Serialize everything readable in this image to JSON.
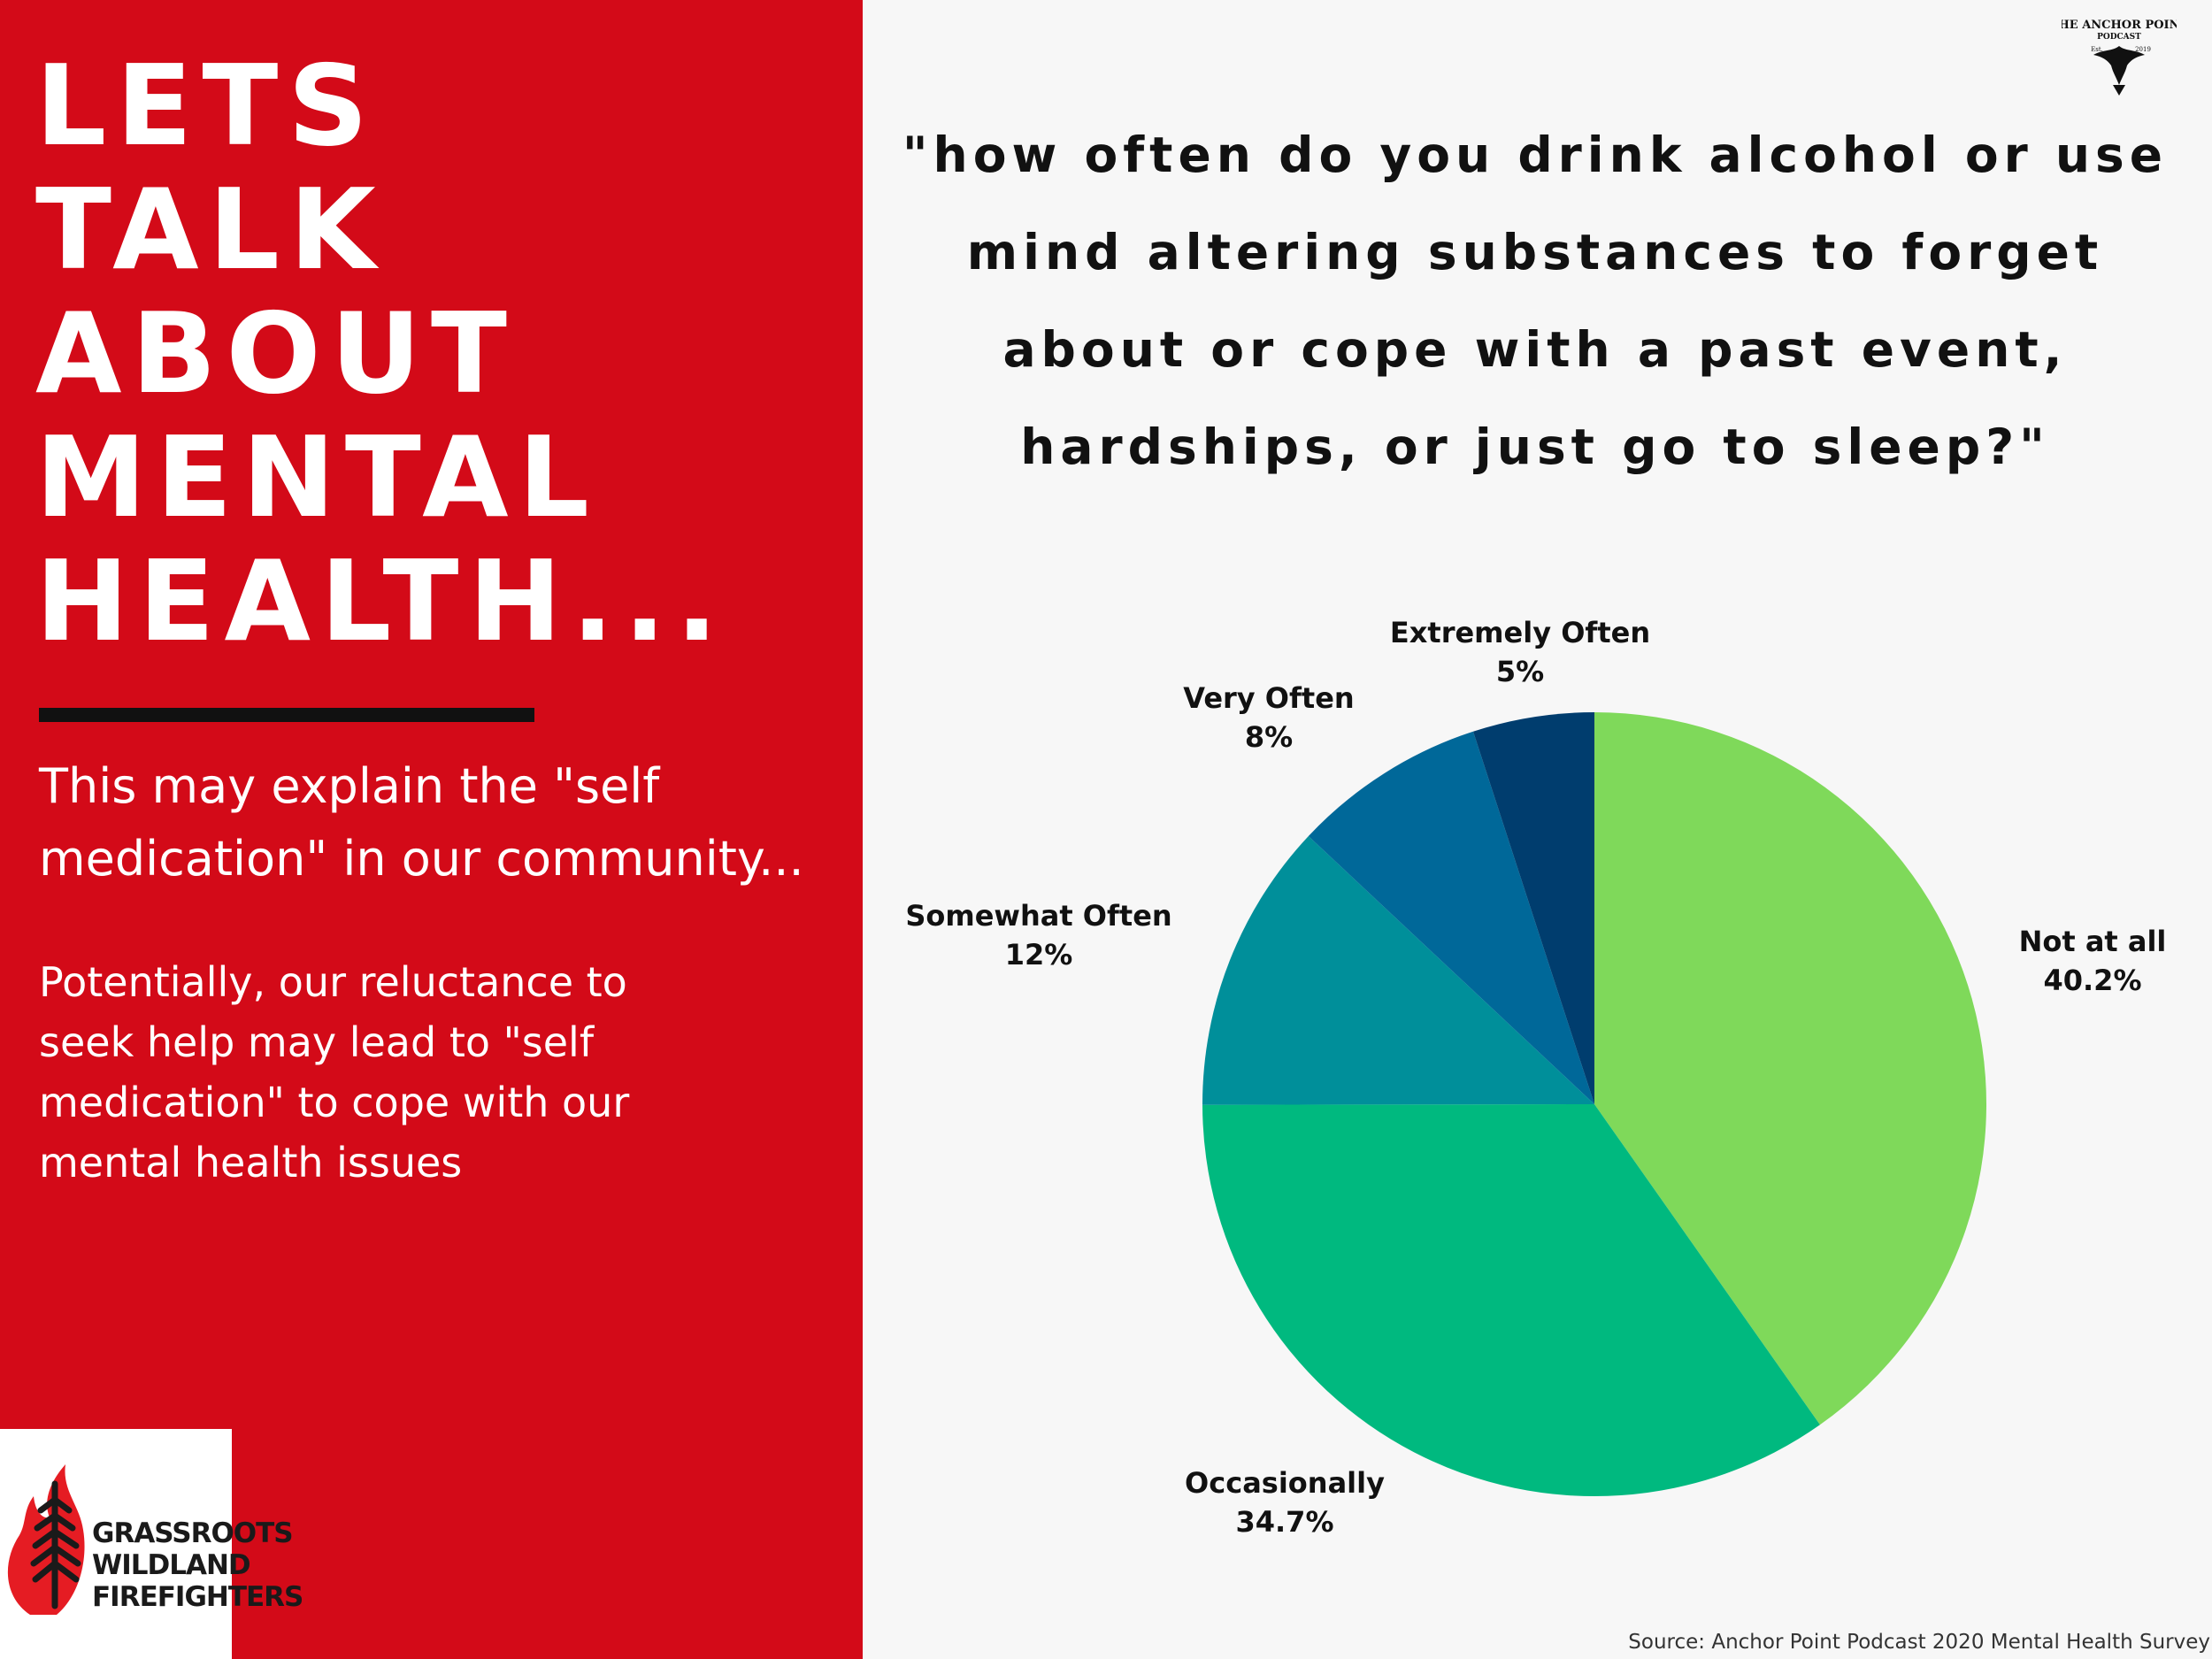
{
  "headline": [
    "LETS",
    "TALK",
    "ABOUT",
    "MENTAL",
    "HEALTH..."
  ],
  "subheading": "This may explain the \"self medication\" in our community...",
  "body_text": "Potentially, our reluctance to seek help may lead to \"self medication\" to cope with our mental health issues",
  "logo_left": {
    "lines": [
      "GRASSROOTS",
      "WILDLAND",
      "FIREFIGHTERS"
    ]
  },
  "logo_right": {
    "text_top": "THE ANCHOR POINT",
    "text_sub": "PODCAST",
    "est": "Est.",
    "year": "2019"
  },
  "colors": {
    "left_panel": "#d30a18",
    "background": "#f7f7f7"
  },
  "chart_data": {
    "type": "pie",
    "title": "\"how often do you drink alcohol or use mind altering substances to forget about or cope with a past event, hardships, or just go to sleep?\"",
    "start_angle_deg": 0,
    "direction": "clockwise",
    "slices": [
      {
        "label": "Not at all",
        "value": 40.2,
        "display": "40.2%",
        "color": "#7fd95a"
      },
      {
        "label": "Occasionally",
        "value": 34.7,
        "display": "34.7%",
        "color": "#00b97f"
      },
      {
        "label": "Somewhat Often",
        "value": 12,
        "display": "12%",
        "color": "#008f9a"
      },
      {
        "label": "Very Often",
        "value": 8,
        "display": "8%",
        "color": "#006899"
      },
      {
        "label": "Extremely Often",
        "value": 5,
        "display": "5%",
        "color": "#003d6e"
      }
    ]
  },
  "source": "Source: Anchor Point Podcast 2020 Mental Health Survey"
}
